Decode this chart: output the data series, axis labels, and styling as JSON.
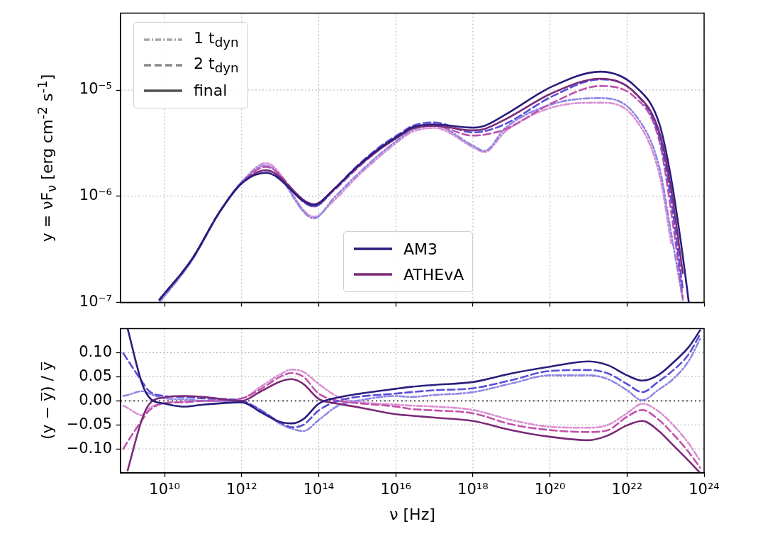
{
  "chart_data": [
    {
      "type": "line",
      "ylabel": "y = νF$_{ν}$ [erg cm$^{-2}$ s$^{-1}$]",
      "log": "xy",
      "grid": true,
      "legend": "top left",
      "tick_labels": "y",
      "xlim": [
        720000000.0,
        1e+24
      ],
      "xticks": [
        {
          "value": 10000000000.0,
          "label": null
        },
        {
          "value": 1000000000000.0,
          "label": null
        },
        {
          "value": 100000000000000.0,
          "label": null
        },
        {
          "value": 1e+16,
          "label": null
        },
        {
          "value": 1e+18,
          "label": null
        },
        {
          "value": 1e+20,
          "label": null
        },
        {
          "value": 1e+22,
          "label": null
        },
        {
          "value": 1e+24,
          "label": null
        }
      ],
      "ylim": [
        1e-07,
        5.3e-05
      ],
      "yticks": [
        {
          "value": 1e-07,
          "label": "10⁻⁷"
        },
        {
          "value": 1e-06,
          "label": "10⁻⁶"
        },
        {
          "value": 1e-05,
          "label": "10⁻⁵"
        }
      ],
      "x": [
        7400000000.0,
        50000000000.0,
        270000000000.0,
        1000000000000.0,
        4300000000000.0,
        76000000000000.0,
        240000000000000.0,
        950000000000000.0,
        4000000000000000.0,
        1.6e+16,
        2.5e+16,
        1e+17,
        1e+18,
        2e+18,
        7.1e+18,
        1.2e+20,
        2e+21,
        1.6e+22,
        6.9e+22,
        1.4e+23,
        2.8e+23,
        4e+23
      ],
      "series": [
        {
          "name": "AM3",
          "color": "#2b1d7c",
          "line_style": "solid",
          "values": [
            1.06e-07,
            2.51e-07,
            7.14e-07,
            1.32e-06,
            1.66e-06,
            8.24e-07,
            1.15e-06,
            1.87e-06,
            2.87e-06,
            3.99e-06,
            4.42e-06,
            4.74e-06,
            4.42e-06,
            4.6e-06,
            5.89e-06,
            1.09e-05,
            1.49e-05,
            1.09e-05,
            4.81e-06,
            1.46e-06,
            2.73e-07,
            1e-07
          ]
        },
        {
          "name": "ATHEvA",
          "color": "#7a2a78",
          "line_style": "solid",
          "values": [
            1.06e-07,
            2.51e-07,
            7.14e-07,
            1.32e-06,
            1.76e-06,
            8.4e-07,
            1.15e-06,
            1.85e-06,
            2.8e-06,
            3.9e-06,
            4.3e-06,
            4.6e-06,
            4.17e-06,
            4.3e-06,
            5.32e-06,
            9.44e-06,
            1.28e-05,
            9.44e-06,
            3.99e-06,
            1.15e-06,
            1.88e-07,
            null
          ]
        },
        {
          "color": "#5b4fd6",
          "line_style": "dashed",
          "values": [
            1.06e-07,
            2.51e-07,
            7.14e-07,
            1.34e-06,
            1.75e-06,
            8e-07,
            1.15e-06,
            1.9e-06,
            2.95e-06,
            4.1e-06,
            4.55e-06,
            4.95e-06,
            3.99e-06,
            4.1e-06,
            4.81e-06,
            8.79e-06,
            1.26e-05,
            9.4e-06,
            3.61e-06,
            9.1e-07,
            1.33e-07,
            null
          ]
        },
        {
          "color": "#c052ac",
          "line_style": "dashed",
          "values": [
            1.06e-07,
            2.51e-07,
            7.14e-07,
            1.34e-06,
            1.89e-06,
            8e-07,
            1.12e-06,
            1.8e-06,
            2.8e-06,
            3.9e-06,
            4.3e-06,
            4.6e-06,
            3.72e-06,
            3.8e-06,
            4.29e-06,
            7.62e-06,
            1.09e-05,
            8.55e-06,
            3.31e-06,
            7.1e-07,
            1.1e-07,
            null
          ]
        },
        {
          "color": "#8e86e3",
          "line_style": "dotted",
          "values": [
            1e-07,
            2.45e-07,
            7.1e-07,
            1.36e-06,
            1.95e-06,
            6.18e-07,
            9.5e-07,
            1.57e-06,
            2.52e-06,
            3.72e-06,
            4.17e-06,
            4.61e-06,
            3e-06,
            2.67e-06,
            4.42e-06,
            7.4e-06,
            8.4e-06,
            5.89e-06,
            1.87e-06,
            4.45e-07,
            1.05e-07,
            null
          ]
        },
        {
          "color": "#da8fd2",
          "line_style": "dotted",
          "values": [
            1e-07,
            2.45e-07,
            7.1e-07,
            1.36e-06,
            2.05e-06,
            6.4e-07,
            9e-07,
            1.5e-06,
            2.4e-06,
            3.6e-06,
            4e-06,
            4.4e-06,
            2.9e-06,
            2.6e-06,
            4.1e-06,
            6.9e-06,
            7.6e-06,
            5.4e-06,
            1.6e-06,
            3.6e-07,
            null,
            null
          ]
        },
        {
          "name": "1 t$_{dyn}$",
          "color": "#a6a6a6",
          "line_style": "dotted",
          "values": [
            null,
            null,
            null,
            null,
            null,
            null,
            null,
            null,
            null,
            null,
            null,
            null,
            null,
            null,
            null,
            null,
            null,
            null,
            null,
            null,
            null,
            null
          ]
        },
        {
          "name": "2 t$_{dyn}$",
          "color": "#8a8a8a",
          "line_style": "dashed",
          "values": [
            null,
            null,
            null,
            null,
            null,
            null,
            null,
            null,
            null,
            null,
            null,
            null,
            null,
            null,
            null,
            null,
            null,
            null,
            null,
            null,
            null,
            null
          ]
        },
        {
          "name": "final",
          "color": "#505050",
          "line_style": "solid",
          "values": [
            null,
            null,
            null,
            null,
            null,
            null,
            null,
            null,
            null,
            null,
            null,
            null,
            null,
            null,
            null,
            null,
            null,
            null,
            null,
            null,
            null,
            null
          ]
        }
      ]
    },
    {
      "type": "line",
      "xlabel": "ν [Hz]",
      "ylabel": "(y − y̅) / y̅",
      "log": "x",
      "grid": true,
      "xlim": [
        720000000.0,
        1e+24
      ],
      "xticks": [
        {
          "value": 10000000000.0,
          "label": "10¹⁰"
        },
        {
          "value": 1000000000000.0,
          "label": "10¹²"
        },
        {
          "value": 100000000000000.0,
          "label": "10¹⁴"
        },
        {
          "value": 1e+16,
          "label": "10¹⁶"
        },
        {
          "value": 1e+18,
          "label": "10¹⁸"
        },
        {
          "value": 1e+20,
          "label": "10²⁰"
        },
        {
          "value": 1e+22,
          "label": "10²²"
        },
        {
          "value": 1e+24,
          "label": "10²⁴"
        }
      ],
      "ylim": [
        -0.15,
        0.15
      ],
      "yticks": [
        {
          "value": -0.1,
          "label": "−0.10"
        },
        {
          "value": -0.05,
          "label": "−0.05"
        },
        {
          "value": 0,
          "label": "0.00"
        },
        {
          "value": 0.05,
          "label": "0.05"
        },
        {
          "value": 0.1,
          "label": "0.10"
        }
      ],
      "ref_lines": [
        {
          "axis": "y",
          "value": 0,
          "color": "#666666",
          "line_style": "dotted"
        }
      ],
      "x": [
        850000000.0,
        1100000000.0,
        2600000000.0,
        4000000000.0,
        10000000000.0,
        32000000000.0,
        100000000000.0,
        1000000000000.0,
        3200000000000.0,
        10000000000000.0,
        20000000000000.0,
        40000000000000.0,
        100000000000000.0,
        320000000000000.0,
        1000000000000000.0,
        1e+16,
        2.5e+16,
        1e+17,
        1e+18,
        1e+19,
        1e+20,
        1e+21,
        3.2e+21,
        1e+22,
        2.5e+22,
        6.3e+22,
        1.6e+23,
        4e+23,
        7.9e+23
      ],
      "series": [
        {
          "color": "#2b1d7c",
          "line_style": "solid",
          "values": [
            null,
            0.15,
            0.036,
            0.007,
            -0.006,
            -0.012,
            -0.008,
            -0.003,
            -0.024,
            -0.044,
            -0.047,
            -0.038,
            -0.006,
            0.007,
            0.014,
            0.025,
            0.029,
            0.033,
            0.039,
            0.057,
            0.071,
            0.082,
            0.074,
            0.053,
            0.042,
            0.053,
            0.08,
            0.112,
            0.147
          ]
        },
        {
          "color": "#7a2a78",
          "line_style": "solid",
          "values": [
            null,
            -0.145,
            -0.038,
            -0.007,
            0.007,
            0.01,
            0.008,
            0.0,
            0.02,
            0.04,
            0.045,
            0.035,
            0.004,
            -0.006,
            -0.013,
            -0.028,
            -0.031,
            -0.035,
            -0.042,
            -0.061,
            -0.075,
            -0.082,
            -0.072,
            -0.051,
            -0.042,
            -0.061,
            -0.093,
            -0.125,
            -0.15
          ]
        },
        {
          "color": "#5b4fd6",
          "line_style": "dashed",
          "values": [
            0.099,
            0.085,
            0.04,
            0.02,
            0.01,
            0.008,
            0.005,
            0.0,
            -0.02,
            -0.045,
            -0.055,
            -0.05,
            -0.02,
            0.0,
            0.008,
            0.015,
            0.018,
            0.022,
            0.026,
            0.043,
            0.062,
            0.064,
            0.057,
            0.035,
            0.018,
            0.039,
            0.064,
            0.097,
            0.139
          ]
        },
        {
          "color": "#c052ac",
          "line_style": "dashed",
          "values": [
            -0.1,
            -0.085,
            -0.04,
            -0.02,
            -0.005,
            -0.003,
            0.0,
            0.005,
            0.025,
            0.05,
            0.058,
            0.05,
            0.015,
            0.0,
            -0.005,
            -0.012,
            -0.017,
            -0.02,
            -0.026,
            -0.049,
            -0.061,
            -0.065,
            -0.061,
            -0.033,
            -0.019,
            -0.038,
            -0.07,
            -0.107,
            -0.139
          ]
        },
        {
          "color": "#8e86e3",
          "line_style": "dotted",
          "values": [
            0.01,
            0.012,
            0.02,
            0.015,
            0.005,
            0.003,
            0.0,
            -0.003,
            -0.02,
            -0.048,
            -0.058,
            -0.063,
            -0.04,
            -0.01,
            0.0,
            0.01,
            0.008,
            0.012,
            0.018,
            0.036,
            0.053,
            0.053,
            0.045,
            0.022,
            0.001,
            0.022,
            0.046,
            0.083,
            0.129
          ]
        },
        {
          "color": "#da8fd2",
          "line_style": "dotted",
          "values": [
            -0.01,
            -0.015,
            -0.03,
            -0.015,
            -0.005,
            -0.002,
            0.0,
            0.005,
            0.03,
            0.055,
            0.065,
            0.06,
            0.035,
            0.008,
            -0.002,
            -0.008,
            -0.01,
            -0.012,
            -0.019,
            -0.04,
            -0.054,
            -0.056,
            -0.05,
            -0.026,
            -0.006,
            -0.021,
            -0.051,
            -0.089,
            -0.125
          ]
        }
      ]
    }
  ]
}
